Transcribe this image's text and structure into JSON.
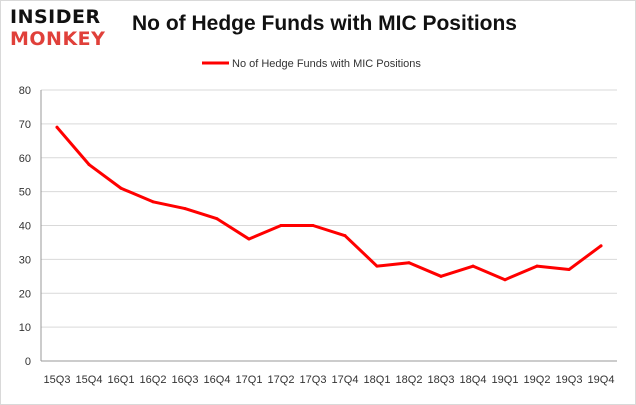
{
  "logo": {
    "line1": "INSIDER",
    "line2": "MONKEY"
  },
  "colors": {
    "series": "#ff0000",
    "grid": "#d9d9d9",
    "axis": "#999999",
    "logo_accent": "#e0403a"
  },
  "chart_data": {
    "type": "line",
    "title": "No of Hedge Funds with MIC Positions",
    "categories": [
      "15Q3",
      "15Q4",
      "16Q1",
      "16Q2",
      "16Q3",
      "16Q4",
      "17Q1",
      "17Q2",
      "17Q3",
      "17Q4",
      "18Q1",
      "18Q2",
      "18Q3",
      "18Q4",
      "19Q1",
      "19Q2",
      "19Q3",
      "19Q4"
    ],
    "series": [
      {
        "name": "No of Hedge Funds with MIC Positions",
        "values": [
          69,
          58,
          51,
          47,
          45,
          42,
          36,
          40,
          40,
          37,
          28,
          29,
          25,
          28,
          24,
          28,
          27,
          34
        ]
      }
    ],
    "ylim": [
      0,
      80
    ],
    "yticks": [
      0,
      10,
      20,
      30,
      40,
      50,
      60,
      70,
      80
    ],
    "grid": true,
    "legend": "top-center"
  }
}
